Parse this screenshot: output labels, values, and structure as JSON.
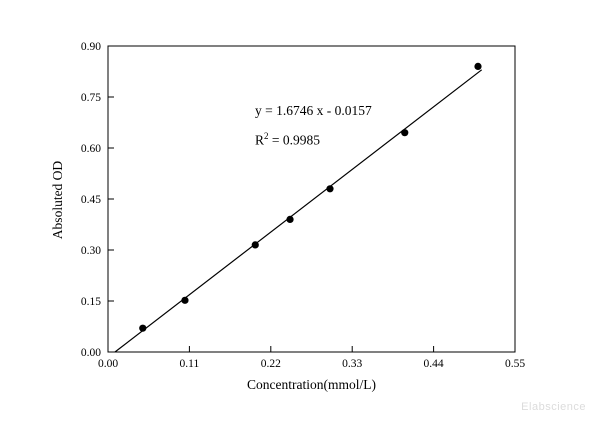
{
  "watermark": "Elabscience",
  "chart_data": {
    "type": "scatter",
    "title": "",
    "xlabel": "Concentration(mmol/L)",
    "ylabel": "Absoluted OD",
    "xlim": [
      0.0,
      0.55
    ],
    "ylim": [
      0.0,
      0.9
    ],
    "grid": false,
    "legend": "none",
    "x_tick_values": [
      0.0,
      0.11,
      0.22,
      0.33,
      0.44,
      0.55
    ],
    "x_tick_labels": [
      "0.00",
      "0.11",
      "0.22",
      "0.33",
      "0.44",
      "0.55"
    ],
    "y_tick_values": [
      0.0,
      0.15,
      0.3,
      0.45,
      0.6,
      0.75,
      0.9
    ],
    "y_tick_labels": [
      "0.00",
      "0.15",
      "0.30",
      "0.45",
      "0.60",
      "0.75",
      "0.90"
    ],
    "points": [
      [
        0.047,
        0.07
      ],
      [
        0.104,
        0.152
      ],
      [
        0.199,
        0.315
      ],
      [
        0.246,
        0.39
      ],
      [
        0.3,
        0.48
      ],
      [
        0.401,
        0.645
      ],
      [
        0.5,
        0.84
      ]
    ],
    "fit_line": {
      "slope": 1.6746,
      "intercept": -0.0157,
      "x_start": 0.0094,
      "x_end": 0.505
    },
    "annotation": {
      "equation": "y = 1.6746 x - 0.0157",
      "r_label": "R",
      "r_exponent": "2",
      "r_value": " = 0.9985"
    }
  }
}
